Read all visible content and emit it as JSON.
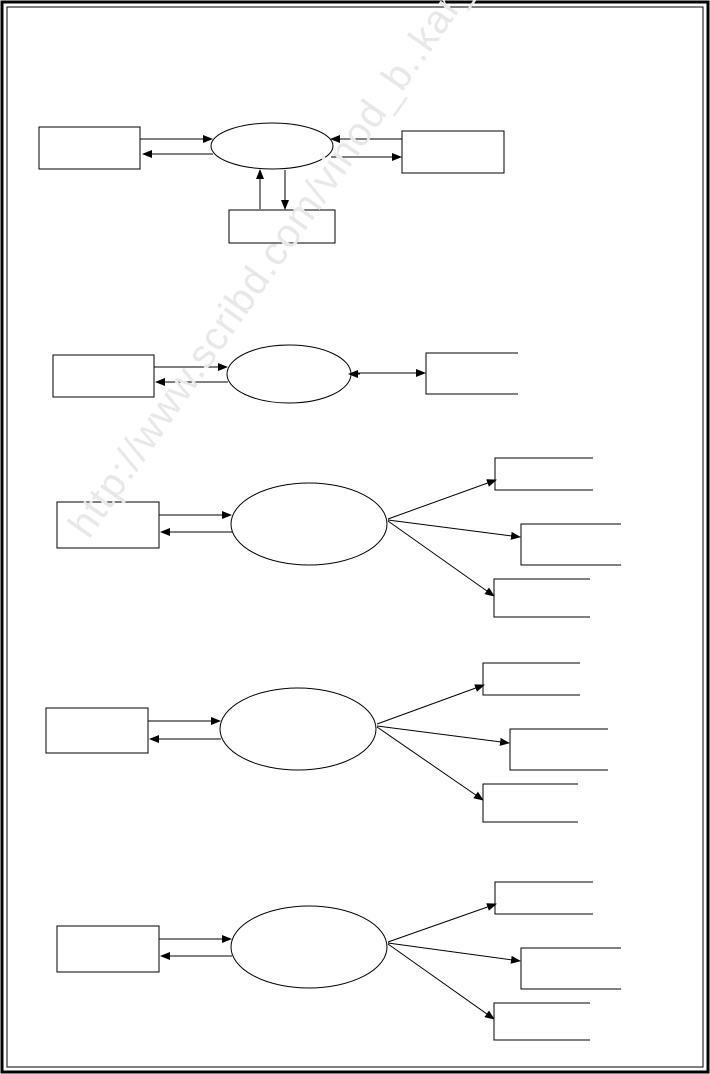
{
  "watermark": {
    "text": "http://www.scribd.com/vinod_b..kar_2"
  },
  "colors": {
    "stroke": "#000000",
    "background": "#ffffff",
    "watermark": "#e8e8e8"
  },
  "diagrams": [
    {
      "id": "context-diagram",
      "node_labels": [
        "",
        "",
        "",
        ""
      ]
    },
    {
      "id": "flow-diagram-2",
      "node_labels": [
        "",
        "",
        ""
      ]
    },
    {
      "id": "flow-diagram-3",
      "node_labels": [
        "",
        "",
        "",
        "",
        ""
      ]
    },
    {
      "id": "flow-diagram-4",
      "node_labels": [
        "",
        "",
        "",
        "",
        ""
      ]
    },
    {
      "id": "flow-diagram-5",
      "node_labels": [
        "",
        "",
        "",
        "",
        ""
      ]
    }
  ]
}
